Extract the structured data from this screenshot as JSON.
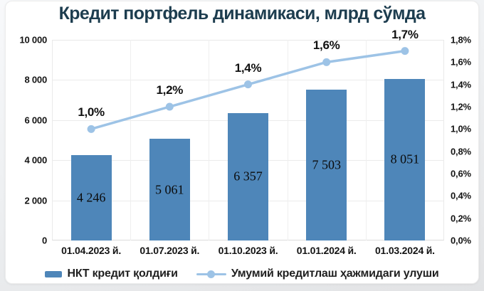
{
  "chart_data": {
    "type": "combo",
    "title": "Кредит портфель динамикаси, млрд сўмда",
    "categories": [
      "01.04.2023 й.",
      "01.07.2023 й.",
      "01.10.2023 й.",
      "01.01.2024 й.",
      "01.03.2024 й."
    ],
    "series": [
      {
        "name": "НКТ кредит қолдиғи",
        "type": "bar",
        "axis": "left",
        "values": [
          4246,
          5061,
          6357,
          7503,
          8051
        ],
        "labels": [
          "4 246",
          "5 061",
          "6 357",
          "7 503",
          "8 051"
        ],
        "color": "#4e86b9"
      },
      {
        "name": "Умумий кредитлаш ҳажмидаги улуши",
        "type": "line",
        "axis": "right",
        "values": [
          1.0,
          1.2,
          1.4,
          1.6,
          1.7
        ],
        "labels": [
          "1,0%",
          "1,2%",
          "1,4%",
          "1,6%",
          "1,7%"
        ],
        "color": "#9dc3e6"
      }
    ],
    "left_axis": {
      "min": 0,
      "max": 10000,
      "step": 2000,
      "ticks": [
        "0",
        "2 000",
        "4 000",
        "6 000",
        "8 000",
        "10 000"
      ]
    },
    "right_axis": {
      "min": 0.0,
      "max": 1.8,
      "step": 0.2,
      "ticks": [
        "0,0%",
        "0,2%",
        "0,4%",
        "0,6%",
        "0,8%",
        "1,0%",
        "1,2%",
        "1,4%",
        "1,6%",
        "1,8%"
      ]
    },
    "grid": true,
    "legend_position": "bottom",
    "colors": {
      "title": "#1d3d4f",
      "bar": "#4e86b9",
      "line": "#9dc3e6",
      "gridline": "#ebebeb"
    }
  }
}
